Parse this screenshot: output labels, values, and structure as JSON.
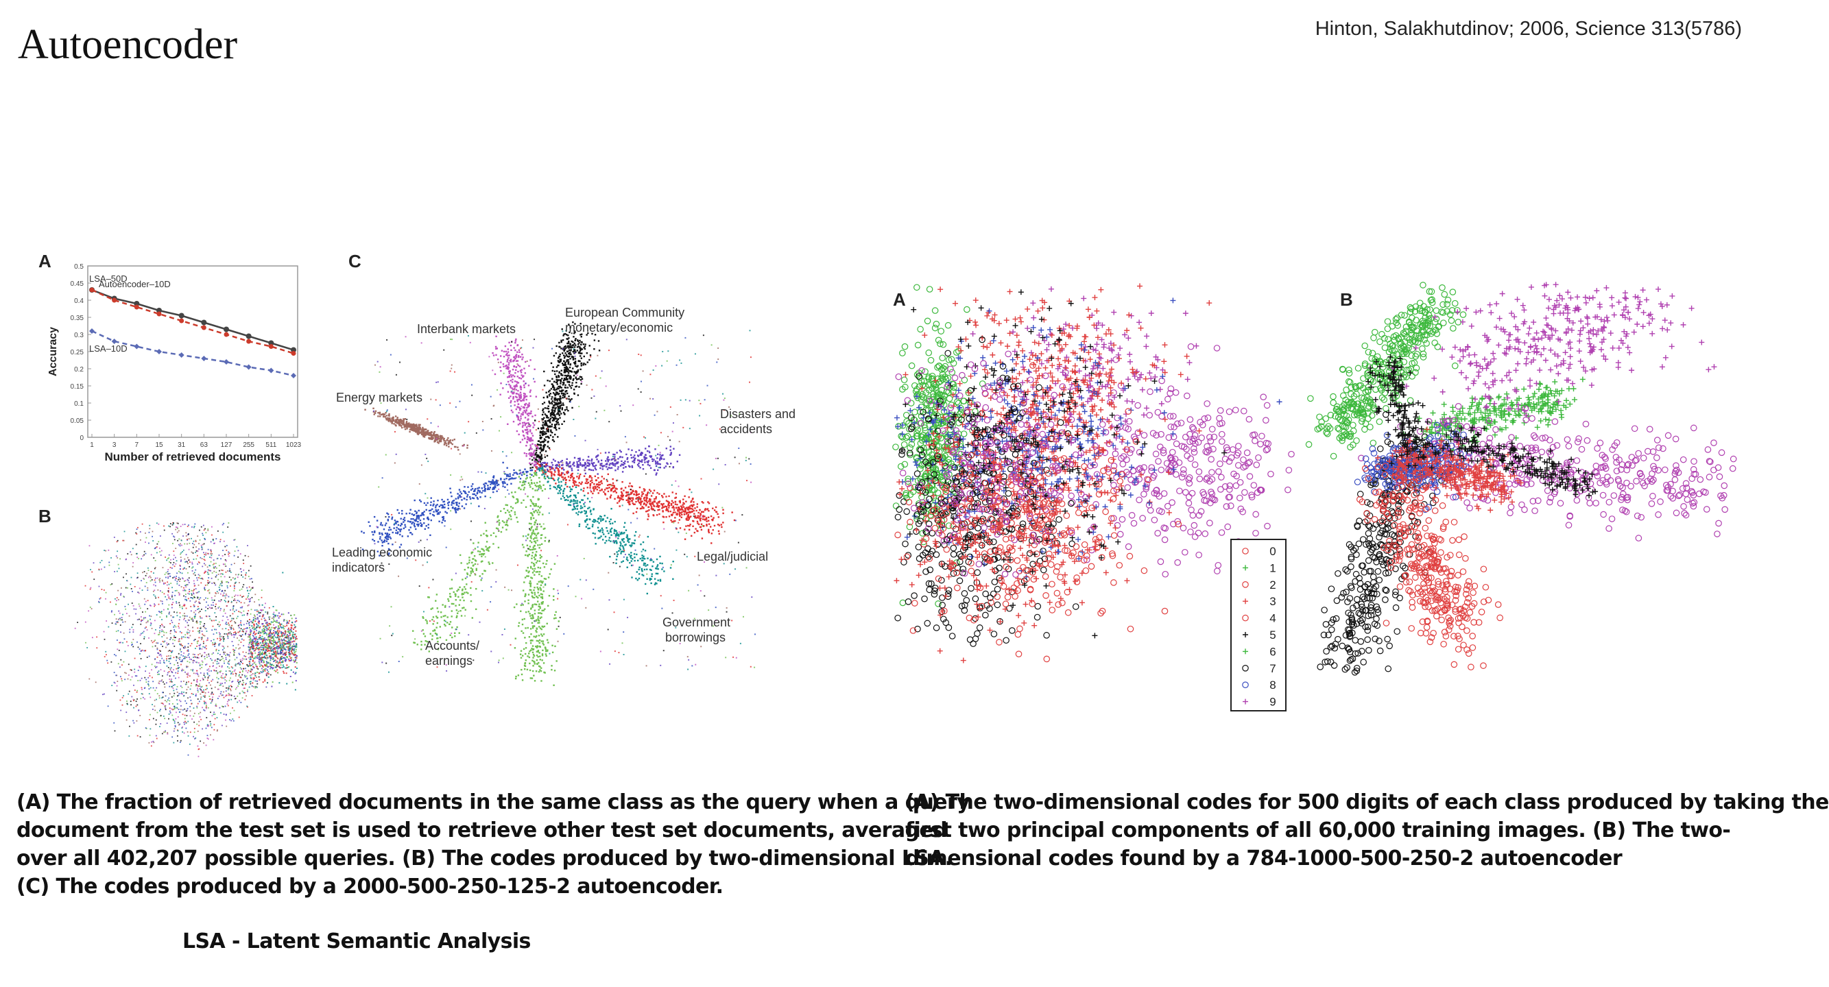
{
  "header": {
    "title": "Autoencoder",
    "citation": "Hinton, Salakhutdinov; 2006, Science 313(5786)"
  },
  "figure_left": {
    "panel_a_label": "A",
    "panel_b_label": "B",
    "panel_c_label": "C",
    "cluster_labels": [
      "European Community",
      "monetary/economic",
      "Interbank markets",
      "Energy markets",
      "Disasters and",
      "accidents",
      "Leading economic",
      "indicators",
      "Legal/judicial",
      "Government",
      "borrowings",
      "Accounts/",
      "earnings"
    ]
  },
  "figure_right": {
    "panel_a_label": "A",
    "panel_b_label": "B",
    "legend": [
      "0",
      "1",
      "2",
      "3",
      "4",
      "5",
      "6",
      "7",
      "8",
      "9"
    ]
  },
  "chart_data": [
    {
      "type": "line",
      "xlabel": "Number of retrieved documents",
      "ylabel": "Accuracy",
      "x": [
        "1",
        "3",
        "7",
        "15",
        "31",
        "63",
        "127",
        "255",
        "511",
        "1023"
      ],
      "yticks": [
        "0",
        "0.05",
        "0.1",
        "0.15",
        "0.2",
        "0.25",
        "0.3",
        "0.35",
        "0.4",
        "0.45",
        "0.5"
      ],
      "ylim": [
        0,
        0.5
      ],
      "series": [
        {
          "name": "Autoencoder–10D",
          "values": [
            0.43,
            0.405,
            0.39,
            0.37,
            0.355,
            0.335,
            0.315,
            0.295,
            0.275,
            0.255
          ],
          "color": "#444444"
        },
        {
          "name": "LSA–50D",
          "values": [
            0.43,
            0.4,
            0.38,
            0.36,
            0.34,
            0.32,
            0.3,
            0.28,
            0.265,
            0.245
          ],
          "color": "#cc3b2b"
        },
        {
          "name": "LSA–10D",
          "values": [
            0.31,
            0.28,
            0.265,
            0.25,
            0.24,
            0.23,
            0.22,
            0.205,
            0.195,
            0.18
          ],
          "color": "#5b6bb5"
        }
      ],
      "grid": false,
      "legend": "inline"
    }
  ],
  "captions": {
    "left": [
      "(A) The fraction of retrieved documents in the same class as the query when a query",
      "document from the test set is used to retrieve other test set documents, averaged",
      "over all 402,207 possible queries. (B) The codes produced by two-dimensional LSA.",
      "(C) The codes produced by a 2000-500-250-125-2 autoencoder."
    ],
    "right": [
      "(A) The two-dimensional codes for 500 digits of each class produced by taking the",
      "first two principal components of all 60,000 training images. (B) The two-",
      "dimensional codes found by a 784-1000-500-250-2 autoencoder"
    ],
    "footnote": "LSA - Latent Semantic Analysis"
  },
  "colors": {
    "digits": [
      "#e04040",
      "#3cb83c",
      "#e04040",
      "#e04040",
      "#e04040",
      "#111111",
      "#3cb83c",
      "#111111",
      "#3a4ec0",
      "#b040b0"
    ],
    "docs": [
      "#111111",
      "#c050c0",
      "#a06a60",
      "#6040c0",
      "#3050c0",
      "#e03030",
      "#109090",
      "#70c050"
    ]
  }
}
